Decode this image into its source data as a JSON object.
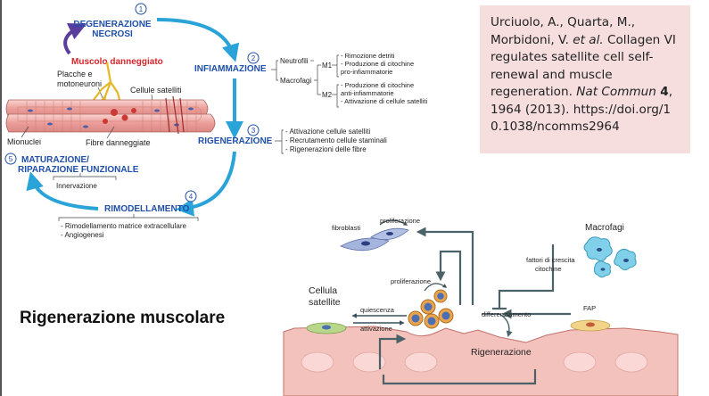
{
  "title": "Rigenerazione muscolare",
  "reference": {
    "authors": "Urciuolo, A., Quarta, M., Morbidoni, V.",
    "etal": "et al.",
    "rest": "Collagen VI regulates satellite cell self-renewal and muscle regeneration.",
    "journal": "Nat Commun",
    "volume": "4",
    "pages": ", 1964 (2013).",
    "doi": "https://doi.org/10.1038/ncomms2964"
  },
  "steps": [
    {
      "num": "1",
      "label1": "DEGENERAZIONE",
      "label2": "NECROSI"
    },
    {
      "num": "2",
      "label": "INFIAMMAZIONE"
    },
    {
      "num": "3",
      "label": "RIGENERAZIONE"
    },
    {
      "num": "4",
      "label": "RIMODELLAMENTO"
    },
    {
      "num": "5",
      "label1": "MATURAZIONE/",
      "label2": "RIPARAZIONE FUNZIONALE"
    }
  ],
  "damaged_muscle": "Muscolo danneggiato",
  "muscle_labels": {
    "plaques1": "Placche e",
    "plaques2": "motoneuroni",
    "satellite_cells": "Cellule satelliti",
    "myonuclei": "Mionuclei",
    "damaged_fibers": "Fibre danneggiate"
  },
  "inflammation": {
    "neutrophils": "Neutrofili",
    "macrophages": "Macrofagi",
    "m1": "M1",
    "m2": "M2",
    "m1_items": [
      "- Rimozione detriti",
      "- Produzione di citochine",
      "  pro-infiammatorie"
    ],
    "m2_items": [
      "- Produzione di citochine",
      "  anti-infiammatorie",
      "- Attivazione di cellule satelliti"
    ]
  },
  "regeneration_items": [
    "- Attivazione cellule satelliti",
    "- Recrutamento cellule staminali",
    "- Rigenerazioni delle fibre"
  ],
  "maturation_items": [
    "Innervazione"
  ],
  "remodeling_items": [
    "- Rimodellamento matrice extracellulare",
    "- Angiogenesi"
  ],
  "bottom_diagram": {
    "fibroblasts": "fibroblasti",
    "proliferation_top": "proliferazione",
    "proliferation_mid": "proliferazione",
    "macrophages": "Macrofagi",
    "growth_factors1": "fattori di crescita",
    "growth_factors2": "citochine",
    "satellite_cell1": "Cellula",
    "satellite_cell2": "satellite",
    "quiescence": "quiescenza",
    "activation": "attivazione",
    "differentiation": "differenziamento",
    "fap": "FAP",
    "regeneration": "Rigenerazione"
  },
  "colors": {
    "step_text": "#1f4fa8",
    "arrow_blue": "#29a3d8",
    "arrow_purple": "#5a3d9c",
    "damaged_red": "#d6252b",
    "ref_bg": "#f6dede",
    "tissue_pink": "#f3c2bd",
    "dark_arrow": "#3b5058"
  }
}
